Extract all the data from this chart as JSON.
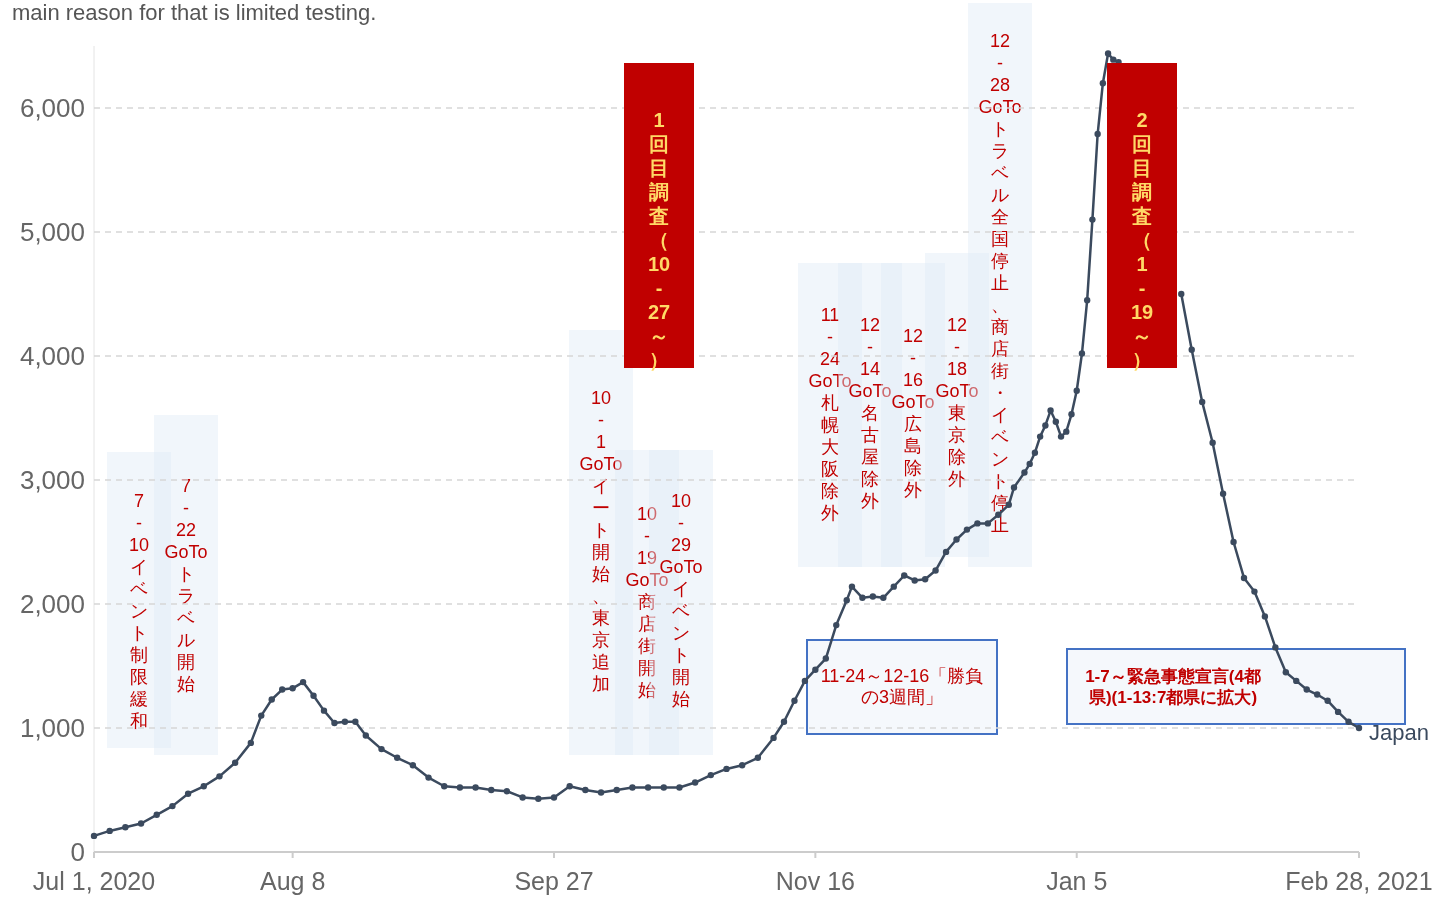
{
  "chart_data": {
    "type": "line",
    "subtitle": "main reason for that is limited testing.",
    "x": [
      "2020-07-01",
      "2020-07-04",
      "2020-07-07",
      "2020-07-10",
      "2020-07-13",
      "2020-07-16",
      "2020-07-19",
      "2020-07-22",
      "2020-07-25",
      "2020-07-28",
      "2020-07-31",
      "2020-08-02",
      "2020-08-04",
      "2020-08-06",
      "2020-08-08",
      "2020-08-10",
      "2020-08-12",
      "2020-08-14",
      "2020-08-16",
      "2020-08-18",
      "2020-08-20",
      "2020-08-22",
      "2020-08-25",
      "2020-08-28",
      "2020-08-31",
      "2020-09-03",
      "2020-09-06",
      "2020-09-09",
      "2020-09-12",
      "2020-09-15",
      "2020-09-18",
      "2020-09-21",
      "2020-09-24",
      "2020-09-27",
      "2020-09-30",
      "2020-10-03",
      "2020-10-06",
      "2020-10-09",
      "2020-10-12",
      "2020-10-15",
      "2020-10-18",
      "2020-10-21",
      "2020-10-24",
      "2020-10-27",
      "2020-10-30",
      "2020-11-02",
      "2020-11-05",
      "2020-11-08",
      "2020-11-10",
      "2020-11-12",
      "2020-11-14",
      "2020-11-16",
      "2020-11-18",
      "2020-11-20",
      "2020-11-22",
      "2020-11-23",
      "2020-11-25",
      "2020-11-27",
      "2020-11-29",
      "2020-12-01",
      "2020-12-03",
      "2020-12-05",
      "2020-12-07",
      "2020-12-09",
      "2020-12-11",
      "2020-12-13",
      "2020-12-15",
      "2020-12-17",
      "2020-12-19",
      "2020-12-21",
      "2020-12-23",
      "2020-12-24",
      "2020-12-26",
      "2020-12-27",
      "2020-12-28",
      "2020-12-29",
      "2020-12-30",
      "2020-12-31",
      "2021-01-01",
      "2021-01-02",
      "2021-01-03",
      "2021-01-04",
      "2021-01-05",
      "2021-01-06",
      "2021-01-07",
      "2021-01-08",
      "2021-01-09",
      "2021-01-10",
      "2021-01-11",
      "2021-01-12",
      "2021-01-13",
      "2021-01-16",
      "2021-01-20",
      "2021-01-24",
      "2021-01-25",
      "2021-01-27",
      "2021-01-29",
      "2021-01-31",
      "2021-02-02",
      "2021-02-04",
      "2021-02-06",
      "2021-02-08",
      "2021-02-10",
      "2021-02-12",
      "2021-02-14",
      "2021-02-16",
      "2021-02-18",
      "2021-02-20",
      "2021-02-22",
      "2021-02-24",
      "2021-02-26",
      "2021-02-28"
    ],
    "series": [
      {
        "name": "Japan",
        "color": "#3b4a5e",
        "values": [
          130,
          170,
          200,
          230,
          300,
          370,
          470,
          530,
          610,
          720,
          880,
          1100,
          1230,
          1310,
          1320,
          1370,
          1260,
          1140,
          1040,
          1050,
          1050,
          940,
          830,
          760,
          700,
          600,
          530,
          520,
          520,
          500,
          490,
          440,
          430,
          440,
          530,
          500,
          480,
          500,
          520,
          520,
          520,
          520,
          560,
          620,
          670,
          700,
          760,
          920,
          1050,
          1220,
          1380,
          1470,
          1560,
          1830,
          2030,
          2140,
          2050,
          2060,
          2050,
          2140,
          2230,
          2190,
          2200,
          2270,
          2420,
          2520,
          2600,
          2650,
          2650,
          2720,
          2800,
          2940,
          3060,
          3130,
          3220,
          3350,
          3440,
          3560,
          3470,
          3350,
          3390,
          3530,
          3720,
          4020,
          4450,
          5100,
          5790,
          6200,
          6440,
          6390,
          6370,
          null,
          null,
          null,
          4500,
          4050,
          3630,
          3300,
          2890,
          2500,
          2210,
          2100,
          1900,
          1650,
          1450,
          1380,
          1310,
          1270,
          1220,
          1130,
          1050,
          1000
        ]
      }
    ],
    "xlim": [
      "2020-07-01",
      "2021-02-28"
    ],
    "xticks": [
      {
        "value": "2020-07-01",
        "label": "Jul 1, 2020"
      },
      {
        "value": "2020-08-08",
        "label": "Aug 8"
      },
      {
        "value": "2020-09-27",
        "label": "Sep 27"
      },
      {
        "value": "2020-11-16",
        "label": "Nov 16"
      },
      {
        "value": "2021-01-05",
        "label": "Jan 5"
      },
      {
        "value": "2021-02-28",
        "label": "Feb 28, 2021"
      }
    ],
    "ylim": [
      0,
      6500
    ],
    "yticks": [
      0,
      {
        "value": 1000,
        "label": "1,000"
      },
      {
        "value": 2000,
        "label": "2,000"
      },
      {
        "value": 3000,
        "label": "3,000"
      },
      {
        "value": 4000,
        "label": "4,000"
      },
      {
        "value": 5000,
        "label": "5,000"
      },
      {
        "value": 6000,
        "label": "6,000"
      }
    ],
    "grid": "y",
    "legend": false,
    "marker": "circle",
    "line_style": "solid",
    "annotations": [
      "7-10イベント制限緩和",
      "7-22GoToトラベル開始",
      "10-1GoToイート開始、東京追加",
      "10-19GoTo商店街開始",
      "10-29GoToイベント開始",
      "11-24GoTo札幌大阪除外",
      "12-14GoTo名古屋除外",
      "12-16GoTo広島除外",
      "12-18GoTo東京除外",
      "12-28GoToトラベル全国停止、商店街・イベント停止",
      "1回目調査（10-27～）",
      "2回目調査（1-19～）",
      "11-24～12-16「勝負の3週間」",
      "1-7～緊急事態宣言(4都県)(1-13:7都県に拡大)"
    ]
  }
}
